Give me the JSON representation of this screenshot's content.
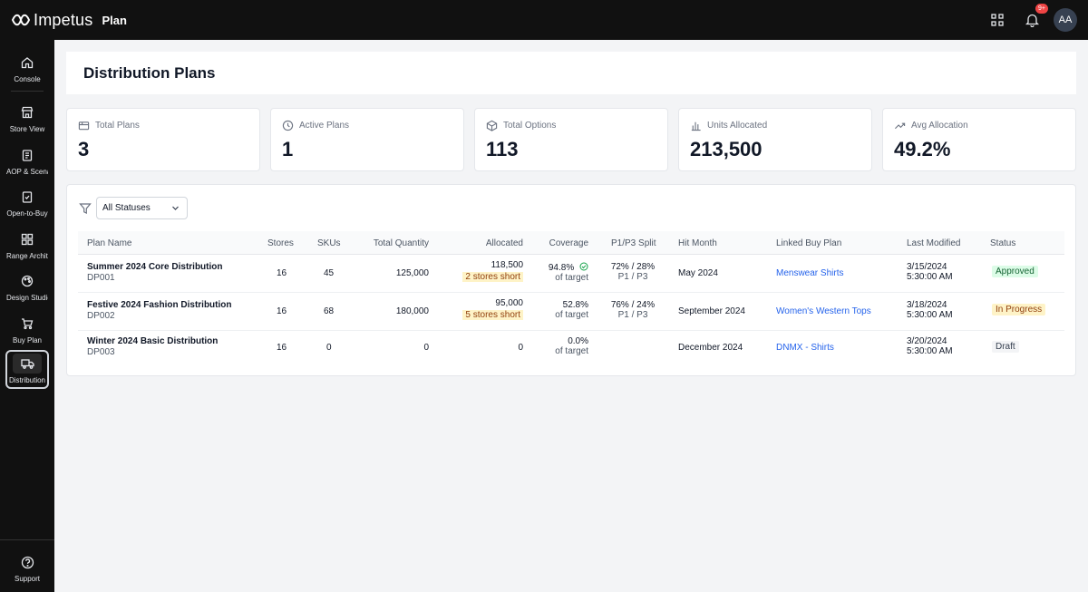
{
  "brand": {
    "logo_text": "Impetus",
    "app_title": "Plan"
  },
  "topbar": {
    "notifications_badge": "9+",
    "avatar_initials": "AA"
  },
  "sidebar": {
    "items": [
      {
        "label": "Console",
        "icon": "home-icon"
      },
      {
        "label": "Store View",
        "icon": "store-icon"
      },
      {
        "label": "AOP & Scenarios",
        "icon": "clipboard-icon"
      },
      {
        "label": "Open-to-Buy",
        "icon": "clipboard-check-icon"
      },
      {
        "label": "Range Architecture",
        "icon": "grid-icon"
      },
      {
        "label": "Design Studio",
        "icon": "palette-icon"
      },
      {
        "label": "Buy Plan",
        "icon": "cart-icon"
      },
      {
        "label": "Distribution",
        "icon": "truck-icon"
      }
    ],
    "support_label": "Support"
  },
  "page": {
    "title": "Distribution Plans"
  },
  "stats": [
    {
      "label": "Total Plans",
      "value": "3",
      "icon": "package-icon"
    },
    {
      "label": "Active Plans",
      "value": "1",
      "icon": "clock-icon"
    },
    {
      "label": "Total Options",
      "value": "113",
      "icon": "box-icon"
    },
    {
      "label": "Units Allocated",
      "value": "213,500",
      "icon": "bar-chart-icon"
    },
    {
      "label": "Avg Allocation",
      "value": "49.2%",
      "icon": "trending-up-icon"
    }
  ],
  "filter": {
    "status_value": "All Statuses"
  },
  "table": {
    "columns": {
      "plan_name": "Plan Name",
      "stores": "Stores",
      "skus": "SKUs",
      "total_quantity": "Total Quantity",
      "allocated": "Allocated",
      "coverage": "Coverage",
      "split": "P1/P3 Split",
      "hit_month": "Hit Month",
      "linked_buy_plan": "Linked Buy Plan",
      "last_modified": "Last Modified",
      "status": "Status"
    },
    "rows": [
      {
        "name": "Summer 2024 Core Distribution",
        "id": "DP001",
        "stores": "16",
        "skus": "45",
        "total_quantity": "125,000",
        "allocated": "118,500",
        "short": "2 stores short",
        "coverage": "94.8%",
        "coverage_sub": "of target",
        "split": "72% / 28%",
        "split_sub": "P1 / P3",
        "hit_month": "May 2024",
        "linked_buy_plan": "Menswear Shirts",
        "modified_date": "3/15/2024",
        "modified_time": "5:30:00 AM",
        "status": "Approved"
      },
      {
        "name": "Festive 2024 Fashion Distribution",
        "id": "DP002",
        "stores": "16",
        "skus": "68",
        "total_quantity": "180,000",
        "allocated": "95,000",
        "short": "5 stores short",
        "coverage": "52.8%",
        "coverage_sub": "of target",
        "split": "76% / 24%",
        "split_sub": "P1 / P3",
        "hit_month": "September 2024",
        "linked_buy_plan": "Women's Western Tops",
        "modified_date": "3/18/2024",
        "modified_time": "5:30:00 AM",
        "status": "In Progress"
      },
      {
        "name": "Winter 2024 Basic Distribution",
        "id": "DP003",
        "stores": "16",
        "skus": "0",
        "total_quantity": "0",
        "allocated": "0",
        "coverage": "0.0%",
        "coverage_sub": "of target",
        "hit_month": "December 2024",
        "linked_buy_plan": "DNMX - Shirts",
        "modified_date": "3/20/2024",
        "modified_time": "5:30:00 AM",
        "status": "Draft"
      }
    ]
  }
}
